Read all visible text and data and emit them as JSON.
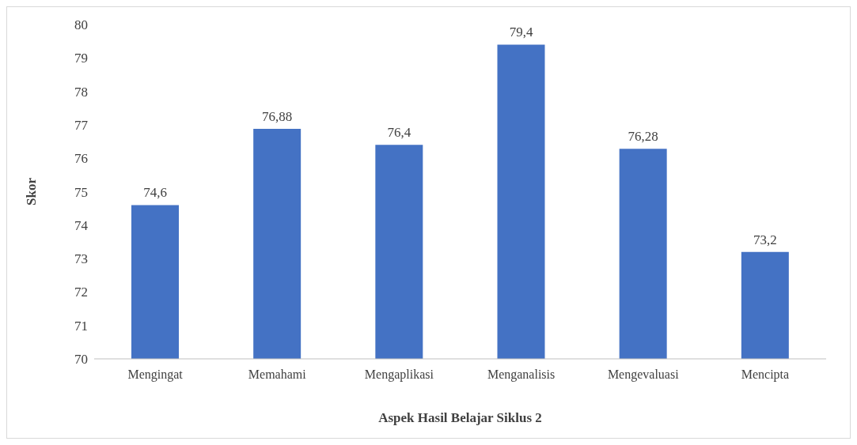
{
  "chart_data": {
    "type": "bar",
    "xlabel": "Aspek Hasil Belajar Siklus 2",
    "ylabel": "Skor",
    "categories": [
      "Mengingat",
      "Memahami",
      "Mengaplikasi",
      "Menganalisis",
      "Mengevaluasi",
      "Mencipta"
    ],
    "values": [
      74.6,
      76.88,
      76.4,
      79.4,
      76.28,
      73.2
    ],
    "value_labels": [
      "74,6",
      "76,88",
      "76,4",
      "79,4",
      "76,28",
      "73,2"
    ],
    "color": "#4472c4",
    "ylim": [
      70,
      80
    ],
    "yticks": [
      70,
      71,
      72,
      73,
      74,
      75,
      76,
      77,
      78,
      79,
      80
    ],
    "grid": false,
    "legend": false
  }
}
